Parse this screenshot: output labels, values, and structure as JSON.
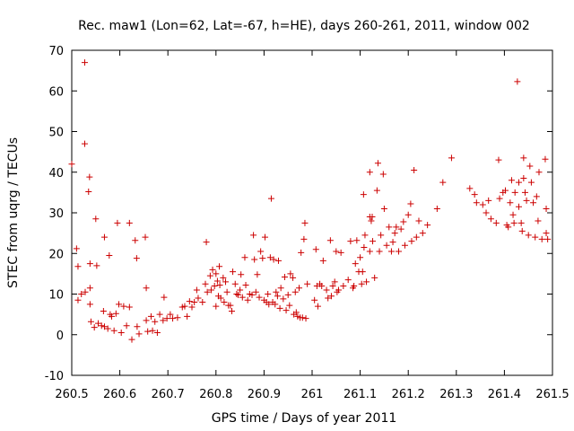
{
  "chart_data": {
    "type": "scatter",
    "title": "Rec. maw1 (Lon=62, Lat=-67, h=HE), days 260-261, 2011, window 002",
    "xlabel": "GPS time / Days of year 2011",
    "ylabel": "STEC from uqrg / TECUs",
    "xlim": [
      260.5,
      261.5
    ],
    "ylim": [
      -10,
      70
    ],
    "x_ticks": [
      260.5,
      260.6,
      260.7,
      260.8,
      260.9,
      261.0,
      261.1,
      261.2,
      261.3,
      261.4,
      261.5
    ],
    "x_tick_labels": [
      "260.5",
      "260.6",
      "260.7",
      "260.8",
      "260.9",
      "261",
      "261.1",
      "261.2",
      "261.3",
      "261.4",
      "261.5"
    ],
    "y_ticks": [
      -10,
      0,
      10,
      20,
      30,
      40,
      50,
      60,
      70
    ],
    "y_tick_labels": [
      "-10",
      "0",
      "10",
      "20",
      "30",
      "40",
      "50",
      "60",
      "70"
    ],
    "marker": "+",
    "marker_color": "#cc0000",
    "series": [
      {
        "name": "STEC",
        "points": [
          [
            260.5,
            42
          ],
          [
            260.51,
            21.2
          ],
          [
            260.513,
            16.8
          ],
          [
            260.513,
            8.5
          ],
          [
            260.52,
            10
          ],
          [
            260.527,
            67
          ],
          [
            260.527,
            47
          ],
          [
            260.528,
            10.5
          ],
          [
            260.535,
            35.2
          ],
          [
            260.537,
            38.8
          ],
          [
            260.538,
            17.5
          ],
          [
            260.538,
            11.5
          ],
          [
            260.538,
            7.5
          ],
          [
            260.54,
            3.2
          ],
          [
            260.547,
            1.8
          ],
          [
            260.55,
            28.5
          ],
          [
            260.552,
            17
          ],
          [
            260.555,
            2.8
          ],
          [
            260.562,
            2.2
          ],
          [
            260.566,
            5.8
          ],
          [
            260.568,
            24
          ],
          [
            260.568,
            2
          ],
          [
            260.575,
            1.5
          ],
          [
            260.578,
            19.5
          ],
          [
            260.58,
            5
          ],
          [
            260.583,
            4.5
          ],
          [
            260.588,
            1
          ],
          [
            260.592,
            5.2
          ],
          [
            260.595,
            27.5
          ],
          [
            260.598,
            7.5
          ],
          [
            260.603,
            0.5
          ],
          [
            260.608,
            7
          ],
          [
            260.614,
            2.2
          ],
          [
            260.62,
            27.5
          ],
          [
            260.62,
            6.8
          ],
          [
            260.625,
            -1.2
          ],
          [
            260.632,
            23.2
          ],
          [
            260.635,
            18.8
          ],
          [
            260.636,
            2
          ],
          [
            260.64,
            0.2
          ],
          [
            260.653,
            24
          ],
          [
            260.655,
            11.5
          ],
          [
            260.655,
            3.5
          ],
          [
            260.658,
            0.8
          ],
          [
            260.665,
            4.5
          ],
          [
            260.668,
            1
          ],
          [
            260.673,
            3.2
          ],
          [
            260.678,
            0.5
          ],
          [
            260.683,
            5
          ],
          [
            260.69,
            3.5
          ],
          [
            260.692,
            9.2
          ],
          [
            260.698,
            4
          ],
          [
            260.705,
            5
          ],
          [
            260.71,
            4
          ],
          [
            260.72,
            4.2
          ],
          [
            260.73,
            6.8
          ],
          [
            260.735,
            7
          ],
          [
            260.74,
            4.5
          ],
          [
            260.745,
            8.2
          ],
          [
            260.75,
            6.8
          ],
          [
            260.755,
            8
          ],
          [
            260.76,
            11
          ],
          [
            260.763,
            9
          ],
          [
            260.772,
            8
          ],
          [
            260.778,
            12.5
          ],
          [
            260.78,
            22.8
          ],
          [
            260.782,
            10.5
          ],
          [
            260.788,
            14.5
          ],
          [
            260.79,
            11
          ],
          [
            260.793,
            16
          ],
          [
            260.797,
            12
          ],
          [
            260.8,
            15
          ],
          [
            260.8,
            7
          ],
          [
            260.803,
            13.2
          ],
          [
            260.805,
            9.5
          ],
          [
            260.807,
            16.8
          ],
          [
            260.808,
            12.2
          ],
          [
            260.81,
            9
          ],
          [
            260.815,
            14
          ],
          [
            260.817,
            8
          ],
          [
            260.82,
            13
          ],
          [
            260.823,
            10.5
          ],
          [
            260.826,
            7.2
          ],
          [
            260.83,
            7.2
          ],
          [
            260.833,
            5.8
          ],
          [
            260.835,
            15.5
          ],
          [
            260.84,
            12.5
          ],
          [
            260.843,
            10
          ],
          [
            260.846,
            9.8
          ],
          [
            260.85,
            11
          ],
          [
            260.852,
            14.8
          ],
          [
            260.855,
            9.2
          ],
          [
            260.86,
            19
          ],
          [
            260.862,
            12.2
          ],
          [
            260.866,
            8.5
          ],
          [
            260.87,
            10
          ],
          [
            260.875,
            9.8
          ],
          [
            260.878,
            24.5
          ],
          [
            260.88,
            18.5
          ],
          [
            260.883,
            10.5
          ],
          [
            260.886,
            14.8
          ],
          [
            260.89,
            9.2
          ],
          [
            260.893,
            20.5
          ],
          [
            260.897,
            18.8
          ],
          [
            260.9,
            8.5
          ],
          [
            260.902,
            24
          ],
          [
            260.905,
            8
          ],
          [
            260.908,
            10
          ],
          [
            260.91,
            7.5
          ],
          [
            260.913,
            19
          ],
          [
            260.915,
            33.5
          ],
          [
            260.918,
            8
          ],
          [
            260.92,
            18.5
          ],
          [
            260.923,
            7.5
          ],
          [
            260.925,
            10.5
          ],
          [
            260.928,
            9.5
          ],
          [
            260.93,
            18.2
          ],
          [
            260.933,
            6.5
          ],
          [
            260.935,
            11.5
          ],
          [
            260.94,
            8.8
          ],
          [
            260.943,
            14.2
          ],
          [
            260.946,
            6
          ],
          [
            260.95,
            9.8
          ],
          [
            260.953,
            7.2
          ],
          [
            260.955,
            15
          ],
          [
            260.96,
            14
          ],
          [
            260.962,
            5
          ],
          [
            260.965,
            10.5
          ],
          [
            260.967,
            5.5
          ],
          [
            260.97,
            4.5
          ],
          [
            260.973,
            11.5
          ],
          [
            260.975,
            4.2
          ],
          [
            260.977,
            20.2
          ],
          [
            260.98,
            4.2
          ],
          [
            260.983,
            23.5
          ],
          [
            260.985,
            27.5
          ],
          [
            260.987,
            4
          ],
          [
            260.99,
            12.5
          ],
          [
            261.005,
            8.5
          ],
          [
            261.008,
            21
          ],
          [
            261.01,
            12
          ],
          [
            261.012,
            7
          ],
          [
            261.016,
            12.5
          ],
          [
            261.02,
            12
          ],
          [
            261.023,
            18.2
          ],
          [
            261.03,
            11
          ],
          [
            261.033,
            9
          ],
          [
            261.038,
            23.2
          ],
          [
            261.04,
            9.5
          ],
          [
            261.043,
            12
          ],
          [
            261.047,
            13
          ],
          [
            261.05,
            20.5
          ],
          [
            261.052,
            10.5
          ],
          [
            261.055,
            11
          ],
          [
            261.06,
            20.2
          ],
          [
            261.065,
            12
          ],
          [
            261.075,
            13.5
          ],
          [
            261.08,
            23
          ],
          [
            261.085,
            11.5
          ],
          [
            261.087,
            12
          ],
          [
            261.09,
            17.5
          ],
          [
            261.093,
            23.2
          ],
          [
            261.097,
            15.5
          ],
          [
            261.1,
            19
          ],
          [
            261.103,
            12.5
          ],
          [
            261.105,
            15.5
          ],
          [
            261.107,
            34.5
          ],
          [
            261.108,
            21.5
          ],
          [
            261.11,
            24.5
          ],
          [
            261.113,
            13
          ],
          [
            261.12,
            40
          ],
          [
            261.12,
            29
          ],
          [
            261.12,
            20.5
          ],
          [
            261.123,
            28
          ],
          [
            261.125,
            29
          ],
          [
            261.126,
            23
          ],
          [
            261.13,
            14
          ],
          [
            261.135,
            35.5
          ],
          [
            261.137,
            42.2
          ],
          [
            261.14,
            20.5
          ],
          [
            261.143,
            24.5
          ],
          [
            261.148,
            39.5
          ],
          [
            261.15,
            31
          ],
          [
            261.155,
            22
          ],
          [
            261.16,
            26.5
          ],
          [
            261.165,
            20.5
          ],
          [
            261.168,
            22.8
          ],
          [
            261.172,
            25
          ],
          [
            261.175,
            26.5
          ],
          [
            261.18,
            20.5
          ],
          [
            261.185,
            26
          ],
          [
            261.19,
            27.8
          ],
          [
            261.193,
            22
          ],
          [
            261.2,
            29.5
          ],
          [
            261.205,
            32.2
          ],
          [
            261.207,
            23
          ],
          [
            261.212,
            40.5
          ],
          [
            261.217,
            24
          ],
          [
            261.222,
            28
          ],
          [
            261.23,
            25
          ],
          [
            261.24,
            27
          ],
          [
            261.26,
            31
          ],
          [
            261.272,
            37.5
          ],
          [
            261.29,
            43.5
          ],
          [
            261.328,
            36
          ],
          [
            261.338,
            34.5
          ],
          [
            261.342,
            32.5
          ],
          [
            261.355,
            32
          ],
          [
            261.362,
            30
          ],
          [
            261.367,
            33
          ],
          [
            261.372,
            28.5
          ],
          [
            261.383,
            27.5
          ],
          [
            261.388,
            43
          ],
          [
            261.39,
            33.5
          ],
          [
            261.397,
            35
          ],
          [
            261.402,
            35.5
          ],
          [
            261.405,
            27
          ],
          [
            261.408,
            26.5
          ],
          [
            261.412,
            32.5
          ],
          [
            261.415,
            38
          ],
          [
            261.418,
            29.5
          ],
          [
            261.42,
            27.5
          ],
          [
            261.422,
            35
          ],
          [
            261.427,
            62.3
          ],
          [
            261.43,
            37.5
          ],
          [
            261.43,
            31.5
          ],
          [
            261.435,
            27.5
          ],
          [
            261.437,
            25.5
          ],
          [
            261.44,
            43.5
          ],
          [
            261.44,
            38.5
          ],
          [
            261.443,
            35
          ],
          [
            261.446,
            33
          ],
          [
            261.45,
            24.5
          ],
          [
            261.453,
            41.5
          ],
          [
            261.456,
            37.5
          ],
          [
            261.46,
            32.5
          ],
          [
            261.464,
            24
          ],
          [
            261.467,
            34
          ],
          [
            261.47,
            28
          ],
          [
            261.472,
            40
          ],
          [
            261.478,
            23.5
          ],
          [
            261.485,
            43.2
          ],
          [
            261.487,
            31
          ],
          [
            261.487,
            25
          ],
          [
            261.49,
            23.5
          ]
        ]
      }
    ]
  }
}
